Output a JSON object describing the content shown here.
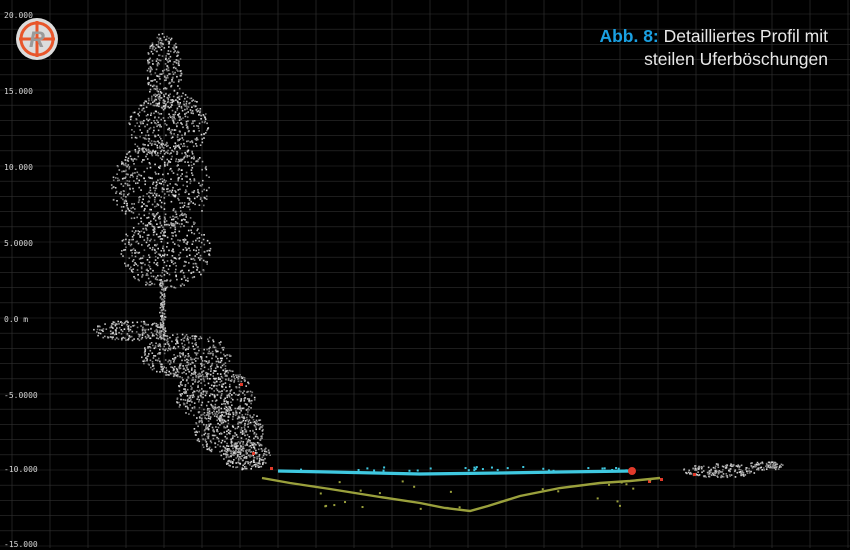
{
  "viewport": {
    "y_axis_labels": [
      "20.000",
      "15.000",
      "10.000",
      "5.0000",
      "0.0 m",
      "-5.0000",
      "-10.000",
      "-15.000"
    ]
  },
  "caption": {
    "label": "Abb. 8:",
    "line1": "Detailliertes Profil mit",
    "line2": "steilen Uferböschungen"
  },
  "logo": {
    "icon": "r-logo-icon"
  },
  "colors": {
    "background": "#000000",
    "grid": "#2f2f2f",
    "water_surface": "#3fc8e0",
    "riverbed": "#9aa03c",
    "points_red": "#e03a2a",
    "caption_label": "#1aa0e2",
    "point_cloud": "#b8b8b8"
  }
}
